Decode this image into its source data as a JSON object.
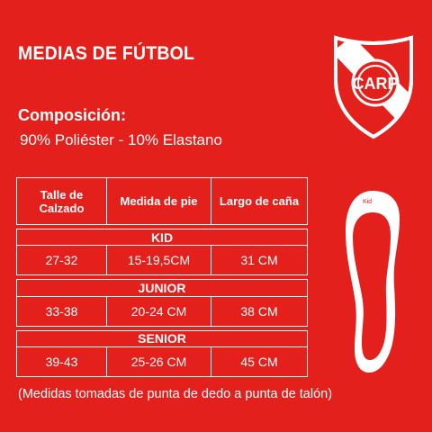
{
  "title": "MEDIAS DE FÚTBOL",
  "composition": {
    "label": "Composición:",
    "value": "90% Poliéster - 10% Elastano"
  },
  "table": {
    "headers": [
      "Talle de Calzado",
      "Medida de pie",
      "Largo de caña"
    ],
    "groups": [
      {
        "name": "KID",
        "row": [
          "27-32",
          "15-19,5CM",
          "31 CM"
        ]
      },
      {
        "name": "JUNIOR",
        "row": [
          "33-38",
          "20-24 CM",
          "38 CM"
        ]
      },
      {
        "name": "SENIOR",
        "row": [
          "39-43",
          "25-26 CM",
          "45 CM"
        ]
      }
    ]
  },
  "sole_label": "Kid",
  "footnote": "(Medidas tomadas de punta de dedo a punta de talón)",
  "colors": {
    "background": "#e3201b",
    "foreground": "#ffffff"
  },
  "icons": {
    "crest": "river-plate-crest-icon",
    "sole": "shoe-sole-icon"
  }
}
